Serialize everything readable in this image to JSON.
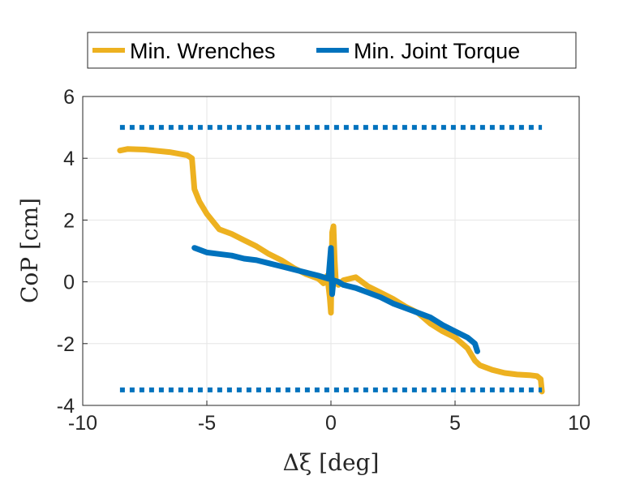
{
  "chart_data": {
    "type": "line",
    "xlabel": "Δξ [deg]",
    "ylabel": "CoP [cm]",
    "xlim": [
      -10,
      10
    ],
    "ylim": [
      -4,
      6
    ],
    "xticks": [
      -10,
      -5,
      0,
      5,
      10
    ],
    "yticks": [
      -4,
      -2,
      0,
      2,
      4,
      6
    ],
    "xtick_labels": [
      "-10",
      "-5",
      "0",
      "5",
      "10"
    ],
    "ytick_labels": [
      "-4",
      "-2",
      "0",
      "2",
      "4",
      "6"
    ],
    "grid": true,
    "legend_position": "top-center",
    "series": [
      {
        "name": "Min. Wrenches",
        "color": "#EDB120",
        "style": "solid",
        "x": [
          -8.5,
          -8.2,
          -7.5,
          -6.5,
          -5.8,
          -5.6,
          -5.5,
          -5.3,
          -5.0,
          -4.5,
          -4.0,
          -3.5,
          -3.0,
          -2.5,
          -2.0,
          -1.5,
          -1.0,
          -0.5,
          -0.3,
          -0.15,
          -0.05,
          0.0,
          0.05,
          0.1,
          0.15,
          0.2,
          0.3,
          0.5,
          1.0,
          1.5,
          2.0,
          2.5,
          3.0,
          3.5,
          4.0,
          4.5,
          5.0,
          5.5,
          5.8,
          6.0,
          6.5,
          7.0,
          7.5,
          8.0,
          8.3,
          8.45,
          8.5
        ],
        "y": [
          4.25,
          4.3,
          4.28,
          4.2,
          4.1,
          4.0,
          3.0,
          2.6,
          2.2,
          1.7,
          1.55,
          1.35,
          1.15,
          0.9,
          0.7,
          0.45,
          0.25,
          0.1,
          -0.05,
          0.2,
          -0.5,
          -1.0,
          1.6,
          1.8,
          0.7,
          0.0,
          -0.1,
          0.05,
          0.15,
          -0.15,
          -0.35,
          -0.55,
          -0.8,
          -1.0,
          -1.35,
          -1.6,
          -1.8,
          -2.15,
          -2.55,
          -2.7,
          -2.85,
          -2.95,
          -3.0,
          -3.02,
          -3.05,
          -3.15,
          -3.55
        ]
      },
      {
        "name": "Min. Joint Torque",
        "color": "#0072BD",
        "style": "solid",
        "x": [
          -5.5,
          -5.0,
          -4.5,
          -4.0,
          -3.5,
          -3.0,
          -2.5,
          -2.0,
          -1.5,
          -1.0,
          -0.5,
          -0.1,
          0.0,
          0.05,
          0.1,
          0.3,
          0.5,
          1.0,
          1.5,
          2.0,
          2.5,
          3.0,
          3.5,
          4.0,
          4.5,
          5.0,
          5.5,
          5.8,
          5.9
        ],
        "y": [
          1.1,
          0.95,
          0.9,
          0.85,
          0.75,
          0.7,
          0.6,
          0.5,
          0.4,
          0.3,
          0.2,
          0.1,
          1.1,
          -0.4,
          0.05,
          0.0,
          -0.1,
          -0.2,
          -0.35,
          -0.5,
          -0.7,
          -0.85,
          -1.0,
          -1.15,
          -1.4,
          -1.6,
          -1.8,
          -2.0,
          -2.25
        ]
      },
      {
        "color": "#0072BD",
        "style": "dotted",
        "x": [
          -8.5,
          8.5
        ],
        "y": [
          5.0,
          5.0
        ]
      },
      {
        "color": "#0072BD",
        "style": "dotted",
        "x": [
          -8.5,
          8.5
        ],
        "y": [
          -3.5,
          -3.5
        ]
      }
    ]
  }
}
